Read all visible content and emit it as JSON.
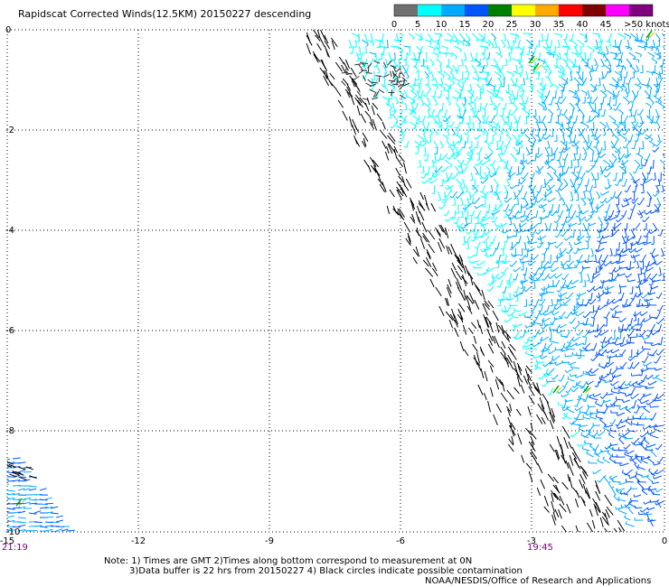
{
  "title": "Rapidscat Corrected Winds(12.5KM) 20150227 descending",
  "legend": {
    "labels": [
      "0",
      "5",
      "10",
      "15",
      "20",
      "25",
      "30",
      "35",
      "40",
      "45",
      ">50 knots"
    ],
    "colors": [
      "#707070",
      "#00ffff",
      "#00aaff",
      "#0055ff",
      "#008000",
      "#ffff00",
      "#ffaa00",
      "#ff0000",
      "#800000",
      "#ff00ff",
      "#800080"
    ]
  },
  "axes": {
    "x_ticks": [
      "-15",
      "-12",
      "-9",
      "-6",
      "-3",
      "0"
    ],
    "y_ticks": [
      "0",
      "-2",
      "-4",
      "-6",
      "-8",
      "-10"
    ]
  },
  "times": {
    "left": "21:19",
    "right": "19:45"
  },
  "notes": {
    "line1": "Note: 1) Times are GMT 2)Times along bottom correspond to measurement at 0N",
    "line2": "3)Data buffer is 22 hrs from 20150227 4) Black circles indicate possible contamination",
    "credit": "NOAA/NESDIS/Office of Research and Applications"
  }
}
